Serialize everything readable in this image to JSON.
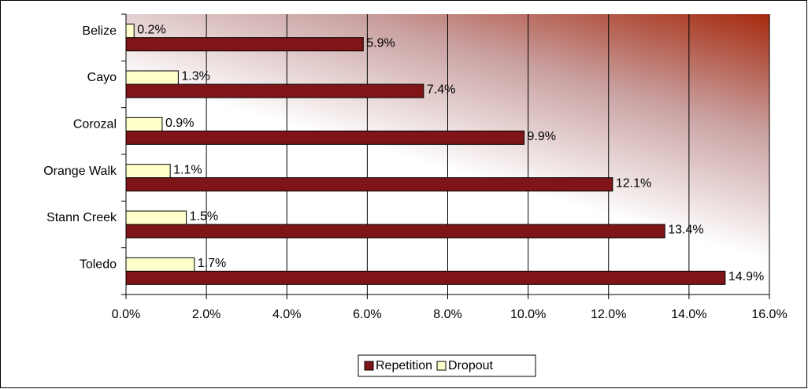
{
  "chart_data": {
    "type": "barh",
    "categories": [
      "Belize",
      "Cayo",
      "Corozal",
      "Orange Walk",
      "Stann Creek",
      "Toledo"
    ],
    "series": [
      {
        "name": "Repetition",
        "color": "#7f1518",
        "values": [
          5.9,
          7.4,
          9.9,
          12.1,
          13.4,
          14.9
        ],
        "value_labels": [
          "5.9%",
          "7.4%",
          "9.9%",
          "12.1%",
          "13.4%",
          "14.9%"
        ]
      },
      {
        "name": "Dropout",
        "color": "#ffffcc",
        "values": [
          0.2,
          1.3,
          0.9,
          1.1,
          1.5,
          1.7
        ],
        "value_labels": [
          "0.2%",
          "1.3%",
          "0.9%",
          "1.1%",
          "1.5%",
          "1.7%"
        ]
      }
    ],
    "xlim": [
      0,
      16
    ],
    "xticks": [
      {
        "value": 0,
        "label": "0.0%"
      },
      {
        "value": 2,
        "label": "2.0%"
      },
      {
        "value": 4,
        "label": "4.0%"
      },
      {
        "value": 6,
        "label": "6.0%"
      },
      {
        "value": 8,
        "label": "8.0%"
      },
      {
        "value": 10,
        "label": "10.0%"
      },
      {
        "value": 12,
        "label": "12.0%"
      },
      {
        "value": 14,
        "label": "14.0%"
      },
      {
        "value": 16,
        "label": "16.0%"
      }
    ],
    "grid": true,
    "legend": "bottom"
  }
}
